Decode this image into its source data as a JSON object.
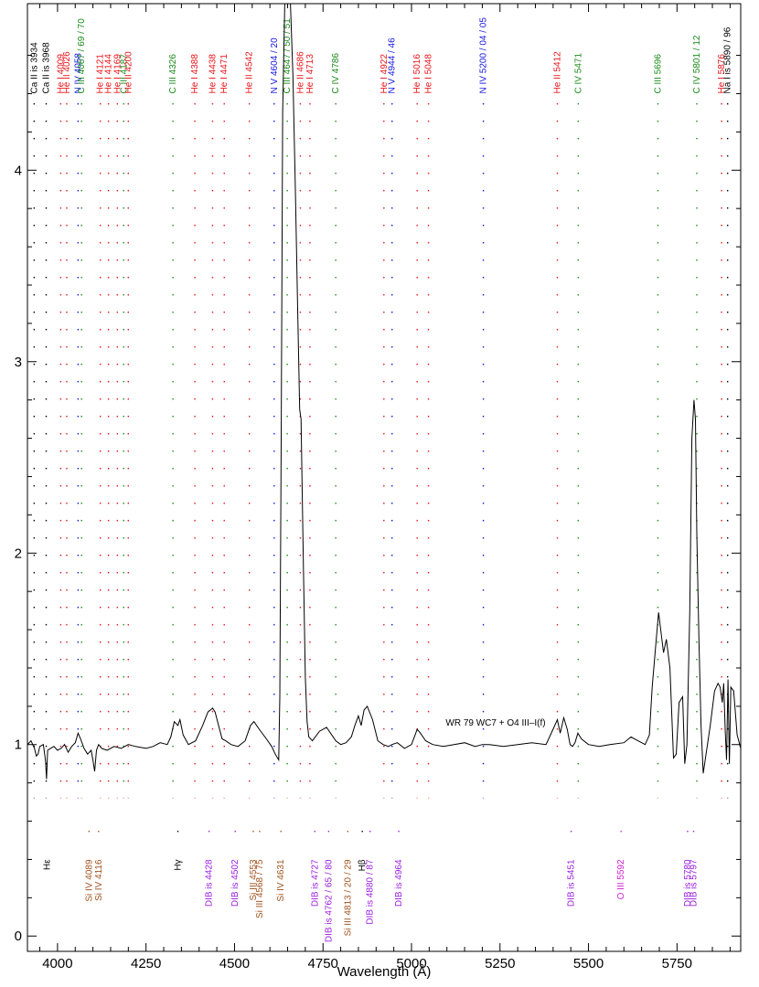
{
  "chart_data": {
    "type": "line",
    "xlabel": "Wavelength (Å)",
    "ylabel": "",
    "xlim": [
      3915,
      5930
    ],
    "ylim": [
      -0.08,
      4.87
    ],
    "xticks": [
      4000,
      4250,
      4500,
      4750,
      5000,
      5250,
      5500,
      5750
    ],
    "xtick_labels": [
      "4000",
      "4250",
      "4500",
      "4750",
      "5000",
      "5250",
      "5500",
      "5750"
    ],
    "yticks": [
      0,
      1,
      2,
      3,
      4
    ],
    "ytick_labels": [
      "0",
      "1",
      "2",
      "3",
      "4"
    ],
    "grid": false,
    "annotation": {
      "star": "WR 79",
      "sptype": "WC7 + O4 III–I(f)",
      "x": 5200,
      "y": 1.1
    },
    "series": [
      {
        "x": [
          3915,
          3925,
          3935,
          3940,
          3945,
          3950,
          3960,
          3966,
          3969,
          3972,
          3980,
          3990,
          4000,
          4010,
          4020,
          4030,
          4040,
          4050,
          4058,
          4065,
          4075,
          4085,
          4095,
          4100,
          4105,
          4110,
          4116,
          4125,
          4140,
          4160,
          4180,
          4200,
          4220,
          4250,
          4270,
          4290,
          4310,
          4320,
          4330,
          4340,
          4346,
          4355,
          4370,
          4390,
          4410,
          4425,
          4438,
          4445,
          4455,
          4465,
          4475,
          4490,
          4510,
          4530,
          4545,
          4555,
          4570,
          4590,
          4605,
          4615,
          4625,
          4628,
          4632,
          4636,
          4642,
          4647,
          4652,
          4658,
          4665,
          4672,
          4678,
          4684,
          4688,
          4695,
          4700,
          4705,
          4710,
          4720,
          4740,
          4760,
          4775,
          4786,
          4800,
          4815,
          4830,
          4840,
          4850,
          4858,
          4866,
          4875,
          4890,
          4905,
          4920,
          4935,
          4945,
          4960,
          4980,
          5000,
          5010,
          5016,
          5025,
          5040,
          5060,
          5090,
          5120,
          5150,
          5180,
          5200,
          5220,
          5260,
          5300,
          5340,
          5380,
          5400,
          5412,
          5420,
          5430,
          5440,
          5448,
          5455,
          5462,
          5470,
          5480,
          5500,
          5530,
          5560,
          5600,
          5620,
          5640,
          5660,
          5672,
          5680,
          5690,
          5698,
          5704,
          5712,
          5720,
          5730,
          5740,
          5748,
          5756,
          5766,
          5772,
          5778,
          5786,
          5792,
          5798,
          5802,
          5806,
          5812,
          5818,
          5824,
          5832,
          5844,
          5856,
          5866,
          5872,
          5878,
          5882,
          5886,
          5890,
          5894,
          5898,
          5902,
          5910,
          5920,
          5930
        ],
        "y": [
          1.0,
          1.02,
          0.98,
          0.94,
          0.95,
          0.99,
          1.0,
          0.92,
          0.82,
          0.97,
          0.98,
          0.99,
          0.97,
          0.98,
          1.0,
          0.96,
          0.99,
          1.01,
          1.06,
          1.03,
          0.98,
          0.95,
          0.97,
          0.92,
          0.86,
          0.97,
          1.0,
          0.98,
          0.97,
          0.99,
          0.98,
          1.0,
          0.99,
          0.98,
          0.99,
          1.01,
          1.0,
          1.04,
          1.12,
          1.1,
          1.13,
          1.05,
          1.0,
          1.02,
          1.1,
          1.17,
          1.19,
          1.17,
          1.1,
          1.03,
          1.02,
          1.0,
          0.99,
          1.02,
          1.1,
          1.12,
          1.08,
          1.03,
          0.99,
          0.95,
          0.92,
          1.25,
          2.6,
          4.3,
          4.87,
          4.87,
          4.87,
          4.87,
          4.5,
          3.9,
          3.3,
          2.75,
          2.7,
          1.9,
          1.35,
          1.12,
          1.04,
          1.02,
          1.07,
          1.09,
          1.05,
          1.02,
          1.0,
          1.01,
          1.04,
          1.1,
          1.15,
          1.1,
          1.18,
          1.2,
          1.13,
          1.02,
          1.0,
          0.99,
          1.0,
          1.01,
          0.98,
          1.0,
          1.05,
          1.08,
          1.06,
          1.02,
          1.0,
          0.99,
          1.0,
          1.01,
          0.99,
          1.0,
          1.0,
          0.99,
          1.0,
          1.01,
          1.0,
          1.08,
          1.13,
          1.06,
          1.14,
          1.08,
          1.0,
          0.99,
          1.01,
          1.06,
          1.03,
          1.0,
          0.99,
          1.0,
          1.01,
          1.04,
          1.02,
          1.0,
          1.05,
          1.3,
          1.52,
          1.69,
          1.6,
          1.48,
          1.55,
          1.4,
          0.93,
          0.95,
          1.22,
          1.25,
          0.9,
          1.0,
          1.7,
          2.6,
          2.8,
          2.7,
          2.1,
          1.55,
          1.1,
          0.85,
          0.95,
          1.1,
          1.28,
          1.32,
          1.3,
          1.22,
          1.32,
          1.08,
          0.92,
          1.34,
          0.9,
          1.3,
          1.28,
          1.05,
          0.98
        ]
      }
    ],
    "line_labels": [
      {
        "text": "Ca II is 3934",
        "x": 3934,
        "color": "#000000",
        "pos": "top"
      },
      {
        "text": "Ca II is 3968",
        "x": 3968,
        "color": "#000000",
        "pos": "top"
      },
      {
        "text": "He II 4026",
        "x": 4026,
        "color": "#e8141a",
        "pos": "top"
      },
      {
        "text": "He I 4009",
        "x": 4009,
        "color": "#e8141a",
        "pos": "top"
      },
      {
        "text": "N IV 4058",
        "x": 4058,
        "color": "#1414e0",
        "pos": "top"
      },
      {
        "text": "C III 4067 / 69 / 70",
        "x": 4068,
        "color": "#1a8c1a",
        "pos": "top"
      },
      {
        "text": "He I 4121",
        "x": 4121,
        "color": "#e8141a",
        "pos": "top"
      },
      {
        "text": "He I 4144",
        "x": 4144,
        "color": "#e8141a",
        "pos": "top"
      },
      {
        "text": "He I 4169",
        "x": 4169,
        "color": "#e8141a",
        "pos": "top"
      },
      {
        "text": "C III 4187",
        "x": 4187,
        "color": "#1a8c1a",
        "pos": "top"
      },
      {
        "text": "He II 4200",
        "x": 4200,
        "color": "#e8141a",
        "pos": "top"
      },
      {
        "text": "C III 4326",
        "x": 4326,
        "color": "#1a8c1a",
        "pos": "top"
      },
      {
        "text": "He I 4388",
        "x": 4388,
        "color": "#e8141a",
        "pos": "top"
      },
      {
        "text": "He I 4438",
        "x": 4438,
        "color": "#e8141a",
        "pos": "top"
      },
      {
        "text": "He I 4471",
        "x": 4471,
        "color": "#e8141a",
        "pos": "top"
      },
      {
        "text": "He II 4542",
        "x": 4542,
        "color": "#e8141a",
        "pos": "top"
      },
      {
        "text": "N V 4604 / 20",
        "x": 4612,
        "color": "#1414e0",
        "pos": "top"
      },
      {
        "text": "C III 4647 / 50 / 51",
        "x": 4649,
        "color": "#1a8c1a",
        "pos": "top"
      },
      {
        "text": "He II 4686",
        "x": 4686,
        "color": "#e8141a",
        "pos": "top"
      },
      {
        "text": "He I 4713",
        "x": 4713,
        "color": "#e8141a",
        "pos": "top"
      },
      {
        "text": "C IV 4786",
        "x": 4786,
        "color": "#1a8c1a",
        "pos": "top"
      },
      {
        "text": "He I 4922",
        "x": 4922,
        "color": "#e8141a",
        "pos": "top"
      },
      {
        "text": "N V 4944 / 46",
        "x": 4945,
        "color": "#1414e0",
        "pos": "top"
      },
      {
        "text": "He I 5016",
        "x": 5016,
        "color": "#e8141a",
        "pos": "top"
      },
      {
        "text": "He I 5048",
        "x": 5048,
        "color": "#e8141a",
        "pos": "top"
      },
      {
        "text": "N IV 5200 / 04 / 05",
        "x": 5203,
        "color": "#1414e0",
        "pos": "top"
      },
      {
        "text": "He II 5412",
        "x": 5412,
        "color": "#e8141a",
        "pos": "top"
      },
      {
        "text": "C IV 5471",
        "x": 5471,
        "color": "#1a8c1a",
        "pos": "top"
      },
      {
        "text": "C III 5696",
        "x": 5696,
        "color": "#1a8c1a",
        "pos": "top"
      },
      {
        "text": "C IV 5801 / 12",
        "x": 5806,
        "color": "#1a8c1a",
        "pos": "top"
      },
      {
        "text": "He I 5876",
        "x": 5876,
        "color": "#e8141a",
        "pos": "top"
      },
      {
        "text": "Na I is 5890 / 96",
        "x": 5893,
        "color": "#000000",
        "pos": "top"
      },
      {
        "text": "Hε",
        "x": 3970,
        "color": "#000000",
        "pos": "bottom"
      },
      {
        "text": "Si IV 4089",
        "x": 4089,
        "color": "#a0521e",
        "pos": "bottom"
      },
      {
        "text": "Si IV 4116",
        "x": 4116,
        "color": "#a0521e",
        "pos": "bottom"
      },
      {
        "text": "Hγ",
        "x": 4340,
        "color": "#000000",
        "pos": "bottom"
      },
      {
        "text": "DIB is 4428",
        "x": 4428,
        "color": "#9a1ee0",
        "pos": "bottom"
      },
      {
        "text": "DIB is 4502",
        "x": 4502,
        "color": "#9a1ee0",
        "pos": "bottom"
      },
      {
        "text": "Si III 4553",
        "x": 4553,
        "color": "#a0521e",
        "pos": "bottom"
      },
      {
        "text": "Si III 4568 / 75",
        "x": 4571,
        "color": "#a0521e",
        "pos": "bottom"
      },
      {
        "text": "Si IV 4631",
        "x": 4631,
        "color": "#a0521e",
        "pos": "bottom"
      },
      {
        "text": "DIB is 4727",
        "x": 4727,
        "color": "#9a1ee0",
        "pos": "bottom"
      },
      {
        "text": "DIB is 4762 / 65 / 80",
        "x": 4766,
        "color": "#9a1ee0",
        "pos": "bottom"
      },
      {
        "text": "Si III 4813 / 20 / 29",
        "x": 4820,
        "color": "#a0521e",
        "pos": "bottom"
      },
      {
        "text": "Hβ",
        "x": 4861,
        "color": "#000000",
        "pos": "bottom"
      },
      {
        "text": "DIB is 4880 / 87",
        "x": 4883,
        "color": "#9a1ee0",
        "pos": "bottom"
      },
      {
        "text": "DIB is 4964",
        "x": 4964,
        "color": "#9a1ee0",
        "pos": "bottom"
      },
      {
        "text": "DIB is 5451",
        "x": 5451,
        "color": "#9a1ee0",
        "pos": "bottom"
      },
      {
        "text": "O III 5592",
        "x": 5592,
        "color": "#d41ed4",
        "pos": "bottom"
      },
      {
        "text": "DIB is 5780",
        "x": 5780,
        "color": "#9a1ee0",
        "pos": "bottom"
      },
      {
        "text": "DIB is 5797",
        "x": 5797,
        "color": "#9a1ee0",
        "pos": "bottom"
      }
    ]
  }
}
